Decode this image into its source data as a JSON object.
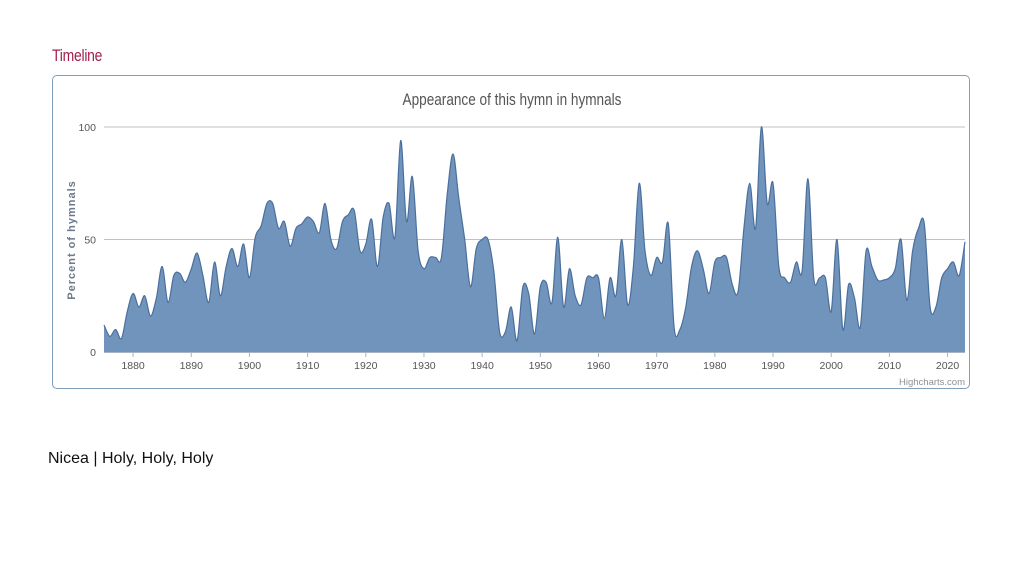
{
  "page": {
    "section_heading": "Timeline",
    "caption": "Nicea | Holy, Holy, Holy"
  },
  "colors": {
    "heading": "#a0204c",
    "area_fill": "#7194bc",
    "area_stroke": "#4a6f9c",
    "gridline": "#c0c0c0",
    "text": "#555555"
  },
  "chart_data": {
    "type": "area",
    "title": "Appearance of this hymn in hymnals",
    "xlabel": "",
    "ylabel": "Percent of hymnals",
    "credits": "Highcharts.com",
    "xlim": [
      1875,
      2023
    ],
    "ylim": [
      0,
      100
    ],
    "x_ticks": [
      1880,
      1890,
      1900,
      1910,
      1920,
      1930,
      1940,
      1950,
      1960,
      1970,
      1980,
      1990,
      2000,
      2010,
      2020
    ],
    "y_ticks": [
      0,
      50,
      100
    ],
    "grid": true,
    "series": [
      {
        "name": "Percent of hymnals",
        "points": [
          [
            1875,
            12
          ],
          [
            1876,
            7
          ],
          [
            1877,
            10
          ],
          [
            1878,
            6
          ],
          [
            1879,
            18
          ],
          [
            1880,
            26
          ],
          [
            1881,
            20
          ],
          [
            1882,
            25
          ],
          [
            1883,
            16
          ],
          [
            1884,
            24
          ],
          [
            1885,
            38
          ],
          [
            1886,
            22
          ],
          [
            1887,
            34
          ],
          [
            1888,
            35
          ],
          [
            1889,
            31
          ],
          [
            1890,
            37
          ],
          [
            1891,
            44
          ],
          [
            1892,
            34
          ],
          [
            1893,
            22
          ],
          [
            1894,
            40
          ],
          [
            1895,
            25
          ],
          [
            1896,
            38
          ],
          [
            1897,
            46
          ],
          [
            1898,
            38
          ],
          [
            1899,
            48
          ],
          [
            1900,
            33
          ],
          [
            1901,
            51
          ],
          [
            1902,
            56
          ],
          [
            1903,
            66
          ],
          [
            1904,
            66
          ],
          [
            1905,
            55
          ],
          [
            1906,
            58
          ],
          [
            1907,
            47
          ],
          [
            1908,
            55
          ],
          [
            1909,
            57
          ],
          [
            1910,
            60
          ],
          [
            1911,
            58
          ],
          [
            1912,
            53
          ],
          [
            1913,
            66
          ],
          [
            1914,
            50
          ],
          [
            1915,
            46
          ],
          [
            1916,
            58
          ],
          [
            1917,
            61
          ],
          [
            1918,
            63
          ],
          [
            1919,
            45
          ],
          [
            1920,
            48
          ],
          [
            1921,
            59
          ],
          [
            1922,
            38
          ],
          [
            1923,
            60
          ],
          [
            1924,
            66
          ],
          [
            1925,
            51
          ],
          [
            1926,
            94
          ],
          [
            1927,
            58
          ],
          [
            1928,
            78
          ],
          [
            1929,
            45
          ],
          [
            1930,
            37
          ],
          [
            1931,
            42
          ],
          [
            1932,
            42
          ],
          [
            1933,
            42
          ],
          [
            1934,
            70
          ],
          [
            1935,
            88
          ],
          [
            1936,
            68
          ],
          [
            1937,
            50
          ],
          [
            1938,
            29
          ],
          [
            1939,
            46
          ],
          [
            1940,
            50
          ],
          [
            1941,
            50
          ],
          [
            1942,
            36
          ],
          [
            1943,
            9
          ],
          [
            1944,
            9
          ],
          [
            1945,
            20
          ],
          [
            1946,
            5
          ],
          [
            1947,
            29
          ],
          [
            1948,
            26
          ],
          [
            1949,
            8
          ],
          [
            1950,
            29
          ],
          [
            1951,
            31
          ],
          [
            1952,
            22
          ],
          [
            1953,
            51
          ],
          [
            1954,
            20
          ],
          [
            1955,
            37
          ],
          [
            1956,
            25
          ],
          [
            1957,
            21
          ],
          [
            1958,
            33
          ],
          [
            1959,
            33
          ],
          [
            1960,
            33
          ],
          [
            1961,
            15
          ],
          [
            1962,
            33
          ],
          [
            1963,
            25
          ],
          [
            1964,
            50
          ],
          [
            1965,
            21
          ],
          [
            1966,
            38
          ],
          [
            1967,
            75
          ],
          [
            1968,
            45
          ],
          [
            1969,
            34
          ],
          [
            1970,
            42
          ],
          [
            1971,
            40
          ],
          [
            1972,
            57
          ],
          [
            1973,
            11
          ],
          [
            1974,
            10
          ],
          [
            1975,
            20
          ],
          [
            1976,
            38
          ],
          [
            1977,
            45
          ],
          [
            1978,
            37
          ],
          [
            1979,
            26
          ],
          [
            1980,
            40
          ],
          [
            1981,
            42
          ],
          [
            1982,
            42
          ],
          [
            1983,
            30
          ],
          [
            1984,
            27
          ],
          [
            1985,
            55
          ],
          [
            1986,
            75
          ],
          [
            1987,
            55
          ],
          [
            1988,
            100
          ],
          [
            1989,
            66
          ],
          [
            1990,
            75
          ],
          [
            1991,
            38
          ],
          [
            1992,
            33
          ],
          [
            1993,
            31
          ],
          [
            1994,
            40
          ],
          [
            1995,
            36
          ],
          [
            1996,
            77
          ],
          [
            1997,
            33
          ],
          [
            1998,
            33
          ],
          [
            1999,
            33
          ],
          [
            2000,
            18
          ],
          [
            2001,
            50
          ],
          [
            2002,
            10
          ],
          [
            2003,
            30
          ],
          [
            2004,
            24
          ],
          [
            2005,
            11
          ],
          [
            2006,
            45
          ],
          [
            2007,
            38
          ],
          [
            2008,
            32
          ],
          [
            2009,
            32
          ],
          [
            2010,
            33
          ],
          [
            2011,
            37
          ],
          [
            2012,
            50
          ],
          [
            2013,
            23
          ],
          [
            2014,
            45
          ],
          [
            2015,
            55
          ],
          [
            2016,
            57
          ],
          [
            2017,
            20
          ],
          [
            2018,
            20
          ],
          [
            2019,
            33
          ],
          [
            2020,
            37
          ],
          [
            2021,
            40
          ],
          [
            2022,
            34
          ],
          [
            2023,
            49
          ]
        ]
      }
    ]
  }
}
